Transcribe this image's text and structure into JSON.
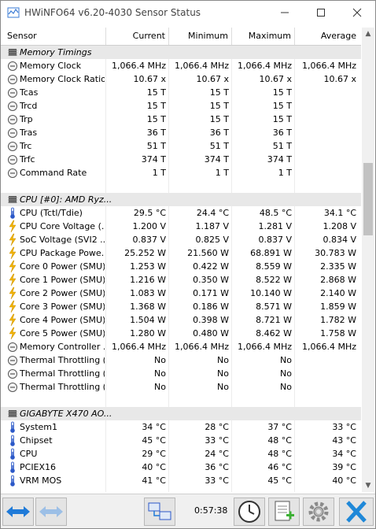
{
  "window": {
    "title": "HWiNFO64 v6.20-4030 Sensor Status"
  },
  "columns": {
    "sensor": "Sensor",
    "current": "Current",
    "minimum": "Minimum",
    "maximum": "Maximum",
    "average": "Average"
  },
  "rows": [
    {
      "type": "group",
      "icon": "memory-chip-icon",
      "name": "Memory Timings"
    },
    {
      "type": "row",
      "icon": "gauge-icon",
      "name": "Memory Clock",
      "cur": "1,066.4 MHz",
      "min": "1,066.4 MHz",
      "max": "1,066.4 MHz",
      "avg": "1,066.4 MHz"
    },
    {
      "type": "row",
      "icon": "gauge-icon",
      "name": "Memory Clock Ratio",
      "cur": "10.67 x",
      "min": "10.67 x",
      "max": "10.67 x",
      "avg": "10.67 x"
    },
    {
      "type": "row",
      "icon": "gauge-icon",
      "name": "Tcas",
      "cur": "15 T",
      "min": "15 T",
      "max": "15 T",
      "avg": ""
    },
    {
      "type": "row",
      "icon": "gauge-icon",
      "name": "Trcd",
      "cur": "15 T",
      "min": "15 T",
      "max": "15 T",
      "avg": ""
    },
    {
      "type": "row",
      "icon": "gauge-icon",
      "name": "Trp",
      "cur": "15 T",
      "min": "15 T",
      "max": "15 T",
      "avg": ""
    },
    {
      "type": "row",
      "icon": "gauge-icon",
      "name": "Tras",
      "cur": "36 T",
      "min": "36 T",
      "max": "36 T",
      "avg": ""
    },
    {
      "type": "row",
      "icon": "gauge-icon",
      "name": "Trc",
      "cur": "51 T",
      "min": "51 T",
      "max": "51 T",
      "avg": ""
    },
    {
      "type": "row",
      "icon": "gauge-icon",
      "name": "Trfc",
      "cur": "374 T",
      "min": "374 T",
      "max": "374 T",
      "avg": ""
    },
    {
      "type": "row",
      "icon": "gauge-icon",
      "name": "Command Rate",
      "cur": "1 T",
      "min": "1 T",
      "max": "1 T",
      "avg": ""
    },
    {
      "type": "group",
      "icon": "cpu-chip-icon",
      "name": "CPU [#0]: AMD Ryz...",
      "spaced": true
    },
    {
      "type": "row",
      "icon": "thermometer-icon",
      "name": "CPU (Tctl/Tdie)",
      "cur": "29.5 °C",
      "min": "24.4 °C",
      "max": "48.5 °C",
      "avg": "34.1 °C"
    },
    {
      "type": "row",
      "icon": "lightning-icon",
      "name": "CPU Core Voltage (...",
      "cur": "1.200 V",
      "min": "1.187 V",
      "max": "1.281 V",
      "avg": "1.208 V"
    },
    {
      "type": "row",
      "icon": "lightning-icon",
      "name": "SoC Voltage (SVI2 ...",
      "cur": "0.837 V",
      "min": "0.825 V",
      "max": "0.837 V",
      "avg": "0.834 V"
    },
    {
      "type": "row",
      "icon": "lightning-icon",
      "name": "CPU Package Powe...",
      "cur": "25.252 W",
      "min": "21.560 W",
      "max": "68.891 W",
      "avg": "30.783 W"
    },
    {
      "type": "row",
      "icon": "lightning-icon",
      "name": "Core 0 Power (SMU)",
      "cur": "1.253 W",
      "min": "0.422 W",
      "max": "8.559 W",
      "avg": "2.335 W"
    },
    {
      "type": "row",
      "icon": "lightning-icon",
      "name": "Core 1 Power (SMU)",
      "cur": "1.216 W",
      "min": "0.350 W",
      "max": "8.522 W",
      "avg": "2.868 W"
    },
    {
      "type": "row",
      "icon": "lightning-icon",
      "name": "Core 2 Power (SMU)",
      "cur": "1.083 W",
      "min": "0.171 W",
      "max": "10.140 W",
      "avg": "2.140 W"
    },
    {
      "type": "row",
      "icon": "lightning-icon",
      "name": "Core 3 Power (SMU)",
      "cur": "1.368 W",
      "min": "0.186 W",
      "max": "8.571 W",
      "avg": "1.859 W"
    },
    {
      "type": "row",
      "icon": "lightning-icon",
      "name": "Core 4 Power (SMU)",
      "cur": "1.504 W",
      "min": "0.398 W",
      "max": "8.721 W",
      "avg": "1.782 W"
    },
    {
      "type": "row",
      "icon": "lightning-icon",
      "name": "Core 5 Power (SMU)",
      "cur": "1.280 W",
      "min": "0.480 W",
      "max": "8.462 W",
      "avg": "1.758 W"
    },
    {
      "type": "row",
      "icon": "gauge-icon",
      "name": "Memory Controller ...",
      "cur": "1,066.4 MHz",
      "min": "1,066.4 MHz",
      "max": "1,066.4 MHz",
      "avg": "1,066.4 MHz"
    },
    {
      "type": "row",
      "icon": "gauge-icon",
      "name": "Thermal Throttling (...",
      "cur": "No",
      "min": "No",
      "max": "No",
      "avg": ""
    },
    {
      "type": "row",
      "icon": "gauge-icon",
      "name": "Thermal Throttling (...",
      "cur": "No",
      "min": "No",
      "max": "No",
      "avg": ""
    },
    {
      "type": "row",
      "icon": "gauge-icon",
      "name": "Thermal Throttling (...",
      "cur": "No",
      "min": "No",
      "max": "No",
      "avg": ""
    },
    {
      "type": "group",
      "icon": "motherboard-chip-icon",
      "name": "GIGABYTE X470 AO...",
      "spaced": true
    },
    {
      "type": "row",
      "icon": "thermometer-icon",
      "name": "System1",
      "cur": "34 °C",
      "min": "28 °C",
      "max": "37 °C",
      "avg": "33 °C"
    },
    {
      "type": "row",
      "icon": "thermometer-icon",
      "name": "Chipset",
      "cur": "45 °C",
      "min": "33 °C",
      "max": "48 °C",
      "avg": "43 °C"
    },
    {
      "type": "row",
      "icon": "thermometer-icon",
      "name": "CPU",
      "cur": "29 °C",
      "min": "24 °C",
      "max": "48 °C",
      "avg": "34 °C"
    },
    {
      "type": "row",
      "icon": "thermometer-icon",
      "name": "PCIEX16",
      "cur": "40 °C",
      "min": "36 °C",
      "max": "46 °C",
      "avg": "39 °C"
    },
    {
      "type": "row",
      "icon": "thermometer-icon",
      "name": "VRM MOS",
      "cur": "41 °C",
      "min": "33 °C",
      "max": "45 °C",
      "avg": "40 °C"
    }
  ],
  "toolbar": {
    "elapsed": "0:57:38",
    "buttons": [
      "expand-arrows-icon",
      "collapse-arrows-icon",
      "network-icon",
      "clock-icon",
      "add-report-icon",
      "settings-gear-icon",
      "close-x-icon"
    ]
  },
  "colors": {
    "group_bg": "#e8e8e8",
    "accent_blue": "#1f7ad8",
    "lightning": "#f2b400",
    "thermo_blue": "#2b58c8",
    "close_x": "#1f88d8",
    "report_green": "#3db034"
  }
}
